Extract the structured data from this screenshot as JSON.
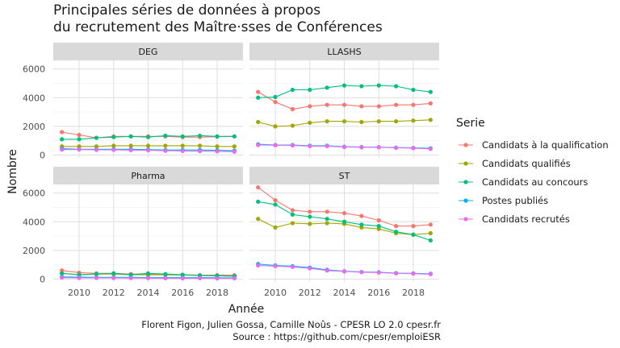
{
  "chart_data": {
    "type": "line",
    "title_line1": "Principales séries de données à propos",
    "title_line2": "du recrutement des Maître·sses de Conférences",
    "xlabel": "Année",
    "ylabel": "Nombre",
    "x_ticks": [
      "2010",
      "2012",
      "2014",
      "2016",
      "2018"
    ],
    "y_ticks": [
      "0",
      "2000",
      "4000",
      "6000"
    ],
    "xlim": [
      2008.5,
      2019.5
    ],
    "ylim": [
      -200,
      6600
    ],
    "grid": true,
    "legend_title": "Serie",
    "legend_position": "right",
    "caption_line1": "Florent Figon, Julien Gossa, Camille Noûs - CPESR LO 2.0 cpesr.fr",
    "caption_line2": "Source : https://github.com/cpesr/emploiESR",
    "series_meta": [
      {
        "key": "qual",
        "name": "Candidats à la qualification",
        "color": "#F8766D"
      },
      {
        "key": "qualifies",
        "name": "Candidats qualifiés",
        "color": "#A3A500"
      },
      {
        "key": "concours",
        "name": "Candidats au concours",
        "color": "#00BF7D"
      },
      {
        "key": "postes",
        "name": "Postes publiés",
        "color": "#00B0F6"
      },
      {
        "key": "recrutes",
        "name": "Candidats recrutés",
        "color": "#E76BF3"
      }
    ],
    "x": [
      2009,
      2010,
      2011,
      2012,
      2013,
      2014,
      2015,
      2016,
      2017,
      2018,
      2019
    ],
    "panels": [
      {
        "name": "DEG",
        "series": {
          "qual": [
            1600,
            1400,
            1200,
            1300,
            1300,
            1300,
            1300,
            1250,
            1250,
            1280,
            1300
          ],
          "qualifies": [
            600,
            600,
            600,
            650,
            650,
            650,
            650,
            650,
            650,
            600,
            600
          ],
          "concours": [
            1100,
            1100,
            1200,
            1250,
            1300,
            1250,
            1350,
            1300,
            1350,
            1300,
            1300
          ],
          "postes": [
            450,
            400,
            400,
            400,
            400,
            380,
            350,
            350,
            350,
            330,
            300
          ],
          "recrutes": [
            380,
            380,
            360,
            360,
            340,
            330,
            300,
            280,
            270,
            260,
            230
          ]
        }
      },
      {
        "name": "LLASHS",
        "series": {
          "qual": [
            4400,
            3700,
            3200,
            3400,
            3500,
            3500,
            3400,
            3400,
            3500,
            3500,
            3600
          ],
          "qualifies": [
            2300,
            2000,
            2050,
            2250,
            2350,
            2350,
            2300,
            2350,
            2350,
            2400,
            2450
          ],
          "concours": [
            4000,
            4050,
            4550,
            4550,
            4700,
            4850,
            4800,
            4850,
            4800,
            4550,
            4400
          ],
          "postes": [
            750,
            700,
            700,
            650,
            650,
            580,
            560,
            550,
            520,
            500,
            470
          ],
          "recrutes": [
            700,
            680,
            670,
            620,
            620,
            560,
            540,
            540,
            500,
            480,
            430
          ]
        }
      },
      {
        "name": "Pharma",
        "series": {
          "qual": [
            600,
            450,
            400,
            400,
            350,
            350,
            300,
            300,
            280,
            270,
            270
          ],
          "qualifies": [
            400,
            300,
            350,
            350,
            300,
            300,
            300,
            280,
            250,
            230,
            200
          ],
          "concours": [
            400,
            300,
            350,
            400,
            300,
            400,
            350,
            300,
            250,
            230,
            200
          ],
          "postes": [
            150,
            130,
            120,
            120,
            120,
            110,
            100,
            100,
            100,
            90,
            80
          ],
          "recrutes": [
            100,
            80,
            80,
            80,
            70,
            70,
            60,
            60,
            60,
            50,
            50
          ]
        }
      },
      {
        "name": "ST",
        "series": {
          "qual": [
            6400,
            5500,
            4800,
            4700,
            4700,
            4600,
            4400,
            4100,
            3700,
            3700,
            3800
          ],
          "qualifies": [
            4200,
            3600,
            3900,
            3850,
            3900,
            3850,
            3600,
            3500,
            3200,
            3100,
            3200
          ],
          "concours": [
            5400,
            5200,
            4500,
            4350,
            4200,
            4000,
            3800,
            3700,
            3300,
            3100,
            2700
          ],
          "postes": [
            1050,
            950,
            900,
            800,
            650,
            550,
            500,
            480,
            420,
            400,
            370
          ],
          "recrutes": [
            950,
            900,
            850,
            750,
            600,
            530,
            480,
            460,
            400,
            380,
            340
          ]
        }
      }
    ]
  }
}
